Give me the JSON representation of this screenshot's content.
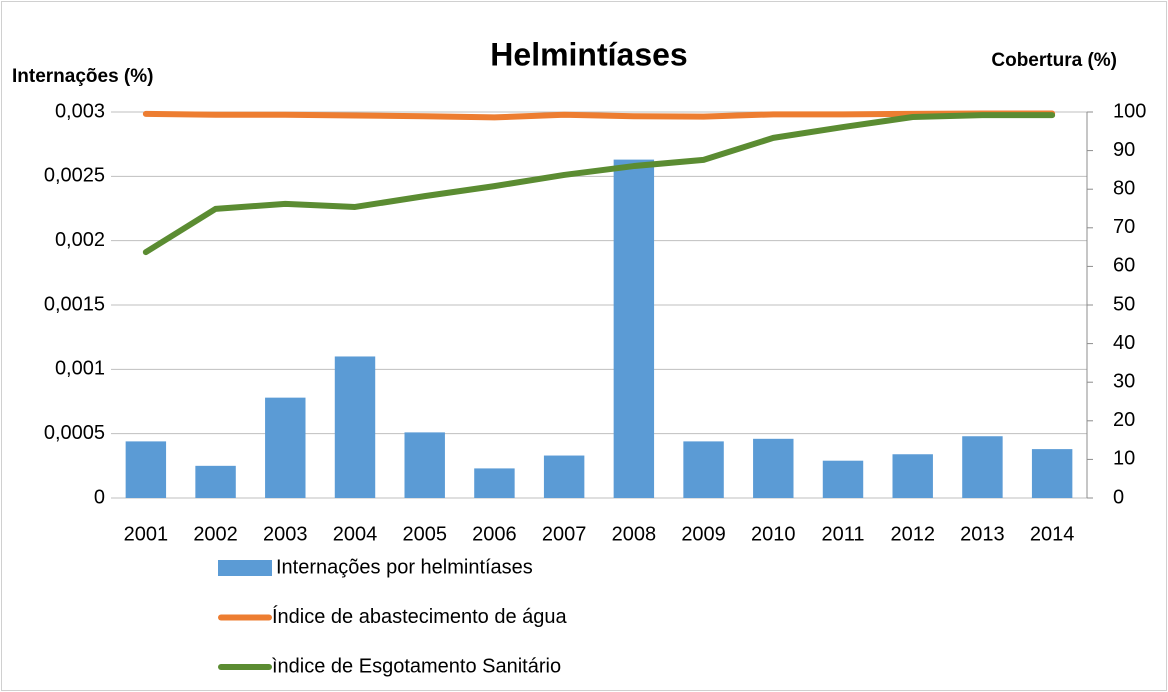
{
  "chart_data": {
    "type": "bar-line",
    "title": "Helmintíases",
    "y_label": "Internações (%)",
    "y2_label": "Cobertura (%)",
    "categories": [
      "2001",
      "2002",
      "2003",
      "2004",
      "2005",
      "2006",
      "2007",
      "2008",
      "2009",
      "2010",
      "2011",
      "2012",
      "2013",
      "2014"
    ],
    "series": [
      {
        "name": "Internações por helmintíases",
        "type": "bar",
        "color": "#5b9bd5",
        "axis": "y",
        "values": [
          0.00044,
          0.00025,
          0.00078,
          0.0011,
          0.00051,
          0.00023,
          0.00033,
          0.00263,
          0.00044,
          0.00046,
          0.00029,
          0.00034,
          0.00048,
          0.00038
        ]
      },
      {
        "name": "Índice de abastecimento de água",
        "type": "line",
        "color": "#ed7d31",
        "axis": "y2",
        "values": [
          99.5,
          99.3,
          99.3,
          99.1,
          98.9,
          98.6,
          99.3,
          98.9,
          98.8,
          99.4,
          99.4,
          99.5,
          99.6,
          99.6
        ]
      },
      {
        "name": "ìndice de Esgotamento Sanitário",
        "type": "line",
        "color": "#5b8c32",
        "axis": "y2",
        "values": [
          63.7,
          74.9,
          76.2,
          75.4,
          78.2,
          80.8,
          83.7,
          86.0,
          87.6,
          93.3,
          96.1,
          98.7,
          99.2,
          99.2
        ]
      }
    ],
    "ylim": [
      0,
      0.003
    ],
    "yticks": [
      0,
      {
        "value": 0.0005,
        "label": "0,0005"
      },
      {
        "value": 0.001,
        "label": "0,001"
      },
      {
        "value": 0.0015,
        "label": "0,0015"
      },
      {
        "value": 0.002,
        "label": "0,002"
      },
      {
        "value": 0.0025,
        "label": "0,0025"
      },
      {
        "value": 0.003,
        "label": "0,003"
      }
    ],
    "y2lim": [
      0,
      100
    ],
    "y2ticks": [
      0,
      10,
      20,
      30,
      40,
      50,
      60,
      70,
      80,
      90,
      100
    ],
    "grid": true
  }
}
